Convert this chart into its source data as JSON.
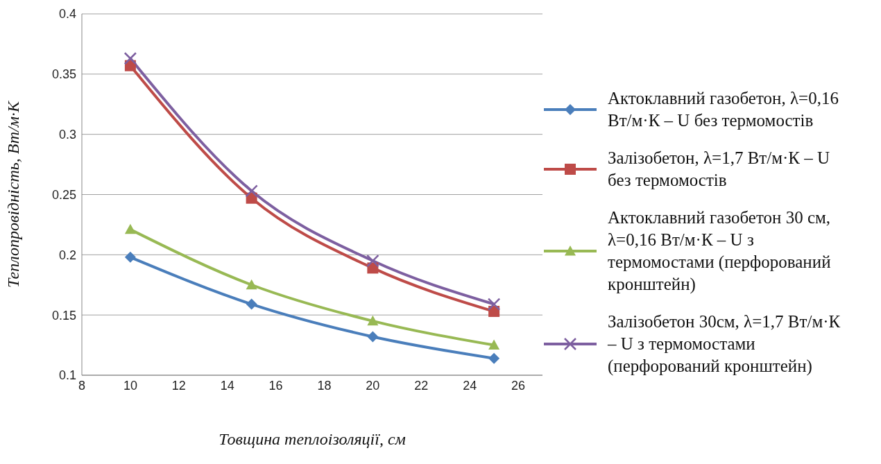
{
  "chart_data": {
    "type": "line",
    "xlabel": "Товщина теплоізоляції, см",
    "ylabel": "Теплопровідність, Вт/м·К",
    "x": [
      10,
      15,
      20,
      25
    ],
    "xlim": [
      8,
      27
    ],
    "xticks": [
      8,
      10,
      12,
      14,
      16,
      18,
      20,
      22,
      24,
      26
    ],
    "ylim": [
      0.1,
      0.4
    ],
    "yticks": [
      0.1,
      0.15,
      0.2,
      0.25,
      0.3,
      0.35,
      0.4
    ],
    "grid": "y",
    "legend": "right",
    "line_style": "solid",
    "series": [
      {
        "name": "Актоклавний газобетон, λ=0,16 Вт/м·К – U без термомостів",
        "color": "#4a7ebb",
        "marker": "diamond",
        "values": [
          0.198,
          0.159,
          0.132,
          0.114
        ]
      },
      {
        "name": "Залізобетон, λ=1,7 Вт/м·К – U без термомостів",
        "color": "#be4b48",
        "marker": "square",
        "values": [
          0.357,
          0.247,
          0.189,
          0.153
        ]
      },
      {
        "name": "Актоклавний газобетон 30 см, λ=0,16 Вт/м·К – U з термомостами (перфорований кронштейн)",
        "color": "#98b954",
        "marker": "triangle",
        "values": [
          0.221,
          0.175,
          0.145,
          0.125
        ]
      },
      {
        "name": "Залізобетон  30см, λ=1,7  Вт/м·К – U з термомостами (перфорований кронштейн)",
        "color": "#7d5fa0",
        "marker": "cross",
        "values": [
          0.363,
          0.253,
          0.195,
          0.159
        ]
      }
    ]
  }
}
